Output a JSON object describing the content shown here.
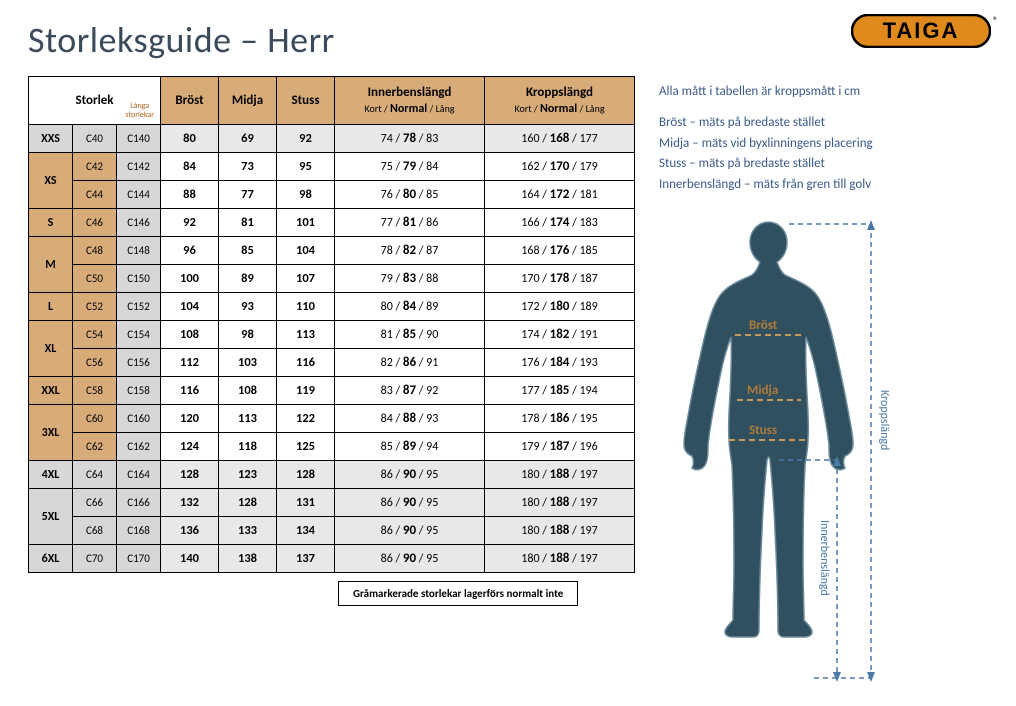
{
  "title": "Storleksguide – Herr",
  "logo_text": "TAIGA",
  "logo_reg": "®",
  "colors": {
    "header_bg": "#d8ac79",
    "gray_bg": "#e8e8ea",
    "gray_cell": "#d7d7d9",
    "body_fill": "#31505f",
    "body_outline": "#6a8a9a",
    "arrow": "#4a7aa8",
    "label_color": "#b07a3a",
    "logo_bg": "#e08a1e",
    "logo_border": "#000000",
    "logo_text": "#000000"
  },
  "headers": {
    "storlek": "Storlek",
    "langa": "Långa\nstorlekar",
    "brost": "Bröst",
    "midja": "Midja",
    "stuss": "Stuss",
    "innerben": "Innerbenslängd",
    "innerben_sub": "Kort / Normal / Lång",
    "kropps": "Kroppslängd",
    "kropps_sub": "Kort / Normal / Lång"
  },
  "rows": [
    {
      "size": "XXS",
      "span": 1,
      "gray": true,
      "sub": [
        {
          "c": "C40",
          "l": "C140",
          "b": 80,
          "m": 69,
          "s": 92,
          "i": [
            74,
            78,
            83
          ],
          "k": [
            160,
            168,
            177
          ]
        }
      ]
    },
    {
      "size": "XS",
      "span": 2,
      "gray": false,
      "sub": [
        {
          "c": "C42",
          "l": "C142",
          "b": 84,
          "m": 73,
          "s": 95,
          "i": [
            75,
            79,
            84
          ],
          "k": [
            162,
            170,
            179
          ]
        },
        {
          "c": "C44",
          "l": "C144",
          "b": 88,
          "m": 77,
          "s": 98,
          "i": [
            76,
            80,
            85
          ],
          "k": [
            164,
            172,
            181
          ]
        }
      ]
    },
    {
      "size": "S",
      "span": 1,
      "gray": false,
      "sub": [
        {
          "c": "C46",
          "l": "C146",
          "b": 92,
          "m": 81,
          "s": 101,
          "i": [
            77,
            81,
            86
          ],
          "k": [
            166,
            174,
            183
          ]
        }
      ]
    },
    {
      "size": "M",
      "span": 2,
      "gray": false,
      "sub": [
        {
          "c": "C48",
          "l": "C148",
          "b": 96,
          "m": 85,
          "s": 104,
          "i": [
            78,
            82,
            87
          ],
          "k": [
            168,
            176,
            185
          ]
        },
        {
          "c": "C50",
          "l": "C150",
          "b": 100,
          "m": 89,
          "s": 107,
          "i": [
            79,
            83,
            88
          ],
          "k": [
            170,
            178,
            187
          ]
        }
      ]
    },
    {
      "size": "L",
      "span": 1,
      "gray": false,
      "sub": [
        {
          "c": "C52",
          "l": "C152",
          "b": 104,
          "m": 93,
          "s": 110,
          "i": [
            80,
            84,
            89
          ],
          "k": [
            172,
            180,
            189
          ]
        }
      ]
    },
    {
      "size": "XL",
      "span": 2,
      "gray": false,
      "sub": [
        {
          "c": "C54",
          "l": "C154",
          "b": 108,
          "m": 98,
          "s": 113,
          "i": [
            81,
            85,
            90
          ],
          "k": [
            174,
            182,
            191
          ]
        },
        {
          "c": "C56",
          "l": "C156",
          "b": 112,
          "m": 103,
          "s": 116,
          "i": [
            82,
            86,
            91
          ],
          "k": [
            176,
            184,
            193
          ]
        }
      ]
    },
    {
      "size": "XXL",
      "span": 1,
      "gray": false,
      "sub": [
        {
          "c": "C58",
          "l": "C158",
          "b": 116,
          "m": 108,
          "s": 119,
          "i": [
            83,
            87,
            92
          ],
          "k": [
            177,
            185,
            194
          ]
        }
      ]
    },
    {
      "size": "3XL",
      "span": 2,
      "gray": false,
      "sub": [
        {
          "c": "C60",
          "l": "C160",
          "b": 120,
          "m": 113,
          "s": 122,
          "i": [
            84,
            88,
            93
          ],
          "k": [
            178,
            186,
            195
          ]
        },
        {
          "c": "C62",
          "l": "C162",
          "b": 124,
          "m": 118,
          "s": 125,
          "i": [
            85,
            89,
            94
          ],
          "k": [
            179,
            187,
            196
          ]
        }
      ]
    },
    {
      "size": "4XL",
      "span": 1,
      "gray": true,
      "sub": [
        {
          "c": "C64",
          "l": "C164",
          "b": 128,
          "m": 123,
          "s": 128,
          "i": [
            86,
            90,
            95
          ],
          "k": [
            180,
            188,
            197
          ]
        }
      ]
    },
    {
      "size": "5XL",
      "span": 2,
      "gray": true,
      "sub": [
        {
          "c": "C66",
          "l": "C166",
          "b": 132,
          "m": 128,
          "s": 131,
          "i": [
            86,
            90,
            95
          ],
          "k": [
            180,
            188,
            197
          ]
        },
        {
          "c": "C68",
          "l": "C168",
          "b": 136,
          "m": 133,
          "s": 134,
          "i": [
            86,
            90,
            95
          ],
          "k": [
            180,
            188,
            197
          ]
        }
      ]
    },
    {
      "size": "6XL",
      "span": 1,
      "gray": true,
      "sub": [
        {
          "c": "C70",
          "l": "C170",
          "b": 140,
          "m": 138,
          "s": 137,
          "i": [
            86,
            90,
            95
          ],
          "k": [
            180,
            188,
            197
          ]
        }
      ]
    }
  ],
  "footnote": "Gråmarkerade storlekar lagerförs normalt inte",
  "info": {
    "line1": "Alla mått i tabellen är kroppsmått i cm",
    "line2": "Bröst – mäts på bredaste stället",
    "line3": "Midja – mäts vid byxlinningens placering",
    "line4": "Stuss – mäts på bredaste stället",
    "line5": "Innerbenslängd – mäts från gren till golv"
  },
  "figure_labels": {
    "brost": "Bröst",
    "midja": "Midja",
    "stuss": "Stuss",
    "kroppslangd": "Kroppslängd",
    "innerbenslangd": "Innerbenslängd"
  }
}
